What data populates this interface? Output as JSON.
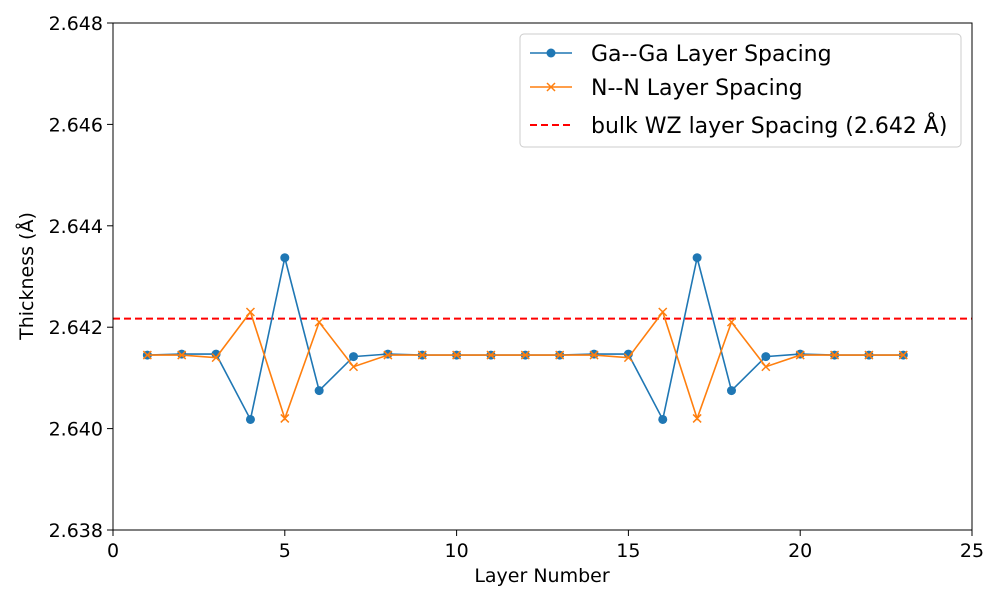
{
  "chart_data": {
    "type": "line",
    "title": "",
    "xlabel": "Layer Number",
    "ylabel": "Thickness (Å)",
    "xlim": [
      0,
      25
    ],
    "ylim": [
      2.638,
      2.648
    ],
    "xticks": [
      "0",
      "5",
      "10",
      "15",
      "20",
      "25"
    ],
    "yticks": [
      "2.638",
      "2.640",
      "2.642",
      "2.644",
      "2.646",
      "2.648"
    ],
    "grid": false,
    "legend_position": "top-right",
    "series": [
      {
        "name": "Ga--Ga Layer Spacing",
        "color": "#1f77b4",
        "marker": "circle",
        "x": [
          1,
          2,
          3,
          4,
          5,
          6,
          7,
          8,
          9,
          10,
          11,
          12,
          13,
          14,
          15,
          16,
          17,
          18,
          19,
          20,
          21,
          22,
          23
        ],
        "y": [
          2.64145,
          2.64147,
          2.64147,
          2.64018,
          2.64337,
          2.64075,
          2.64142,
          2.64147,
          2.64145,
          2.64145,
          2.64145,
          2.64145,
          2.64145,
          2.64147,
          2.64147,
          2.64018,
          2.64337,
          2.64075,
          2.64142,
          2.64147,
          2.64145,
          2.64145,
          2.64145
        ]
      },
      {
        "name": "N--N Layer Spacing",
        "color": "#ff7f0e",
        "marker": "x",
        "x": [
          1,
          2,
          3,
          4,
          5,
          6,
          7,
          8,
          9,
          10,
          11,
          12,
          13,
          14,
          15,
          16,
          17,
          18,
          19,
          20,
          21,
          22,
          23
        ],
        "y": [
          2.64145,
          2.64145,
          2.6414,
          2.6423,
          2.6402,
          2.6421,
          2.64122,
          2.64145,
          2.64145,
          2.64145,
          2.64145,
          2.64145,
          2.64145,
          2.64145,
          2.6414,
          2.6423,
          2.6402,
          2.6421,
          2.64122,
          2.64145,
          2.64145,
          2.64145,
          2.64145
        ]
      }
    ],
    "reference_lines": [
      {
        "name": "bulk WZ layer Spacing (2.642 Å)",
        "y": 2.64217,
        "color": "#ff0000",
        "style": "dashed"
      }
    ]
  }
}
